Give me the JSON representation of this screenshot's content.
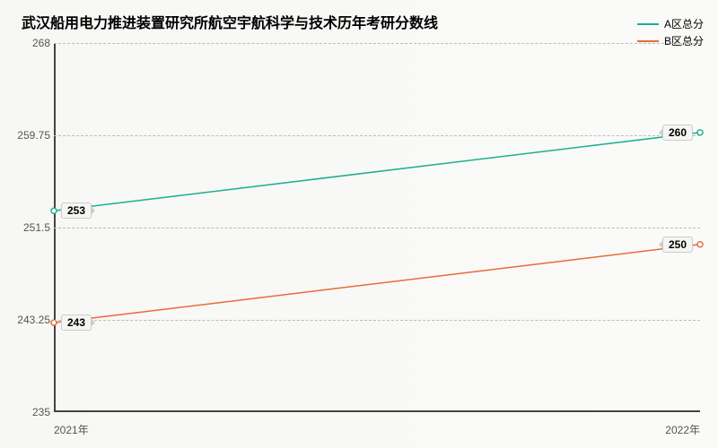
{
  "title": "武汉船用电力推进装置研究所航空宇航科学与技术历年考研分数线",
  "title_fontsize": 16,
  "background_color": "#f7f7f5",
  "legend": {
    "position": "top-right",
    "items": [
      {
        "label": "A区总分",
        "color": "#1fae8f"
      },
      {
        "label": "B区总分",
        "color": "#e96a3c"
      }
    ]
  },
  "chart": {
    "type": "line",
    "xlim": [
      "2021年",
      "2022年"
    ],
    "ylim": [
      235,
      268
    ],
    "yticks": [
      235,
      243.25,
      251.5,
      259.75,
      268
    ],
    "x_categories": [
      "2021年",
      "2022年"
    ],
    "grid_color": "#bbbbbb",
    "axis_color": "#444444",
    "label_fontsize": 12,
    "label_color": "#555555",
    "line_width": 1.5,
    "series": [
      {
        "name": "A区总分",
        "color": "#1fae8f",
        "values": [
          253,
          260
        ]
      },
      {
        "name": "B区总分",
        "color": "#e96a3c",
        "values": [
          243,
          250
        ]
      }
    ],
    "point_labels": [
      {
        "value": "253",
        "side": "left",
        "y": 253
      },
      {
        "value": "260",
        "side": "right",
        "y": 260
      },
      {
        "value": "243",
        "side": "left",
        "y": 243
      },
      {
        "value": "250",
        "side": "right",
        "y": 250
      }
    ]
  }
}
